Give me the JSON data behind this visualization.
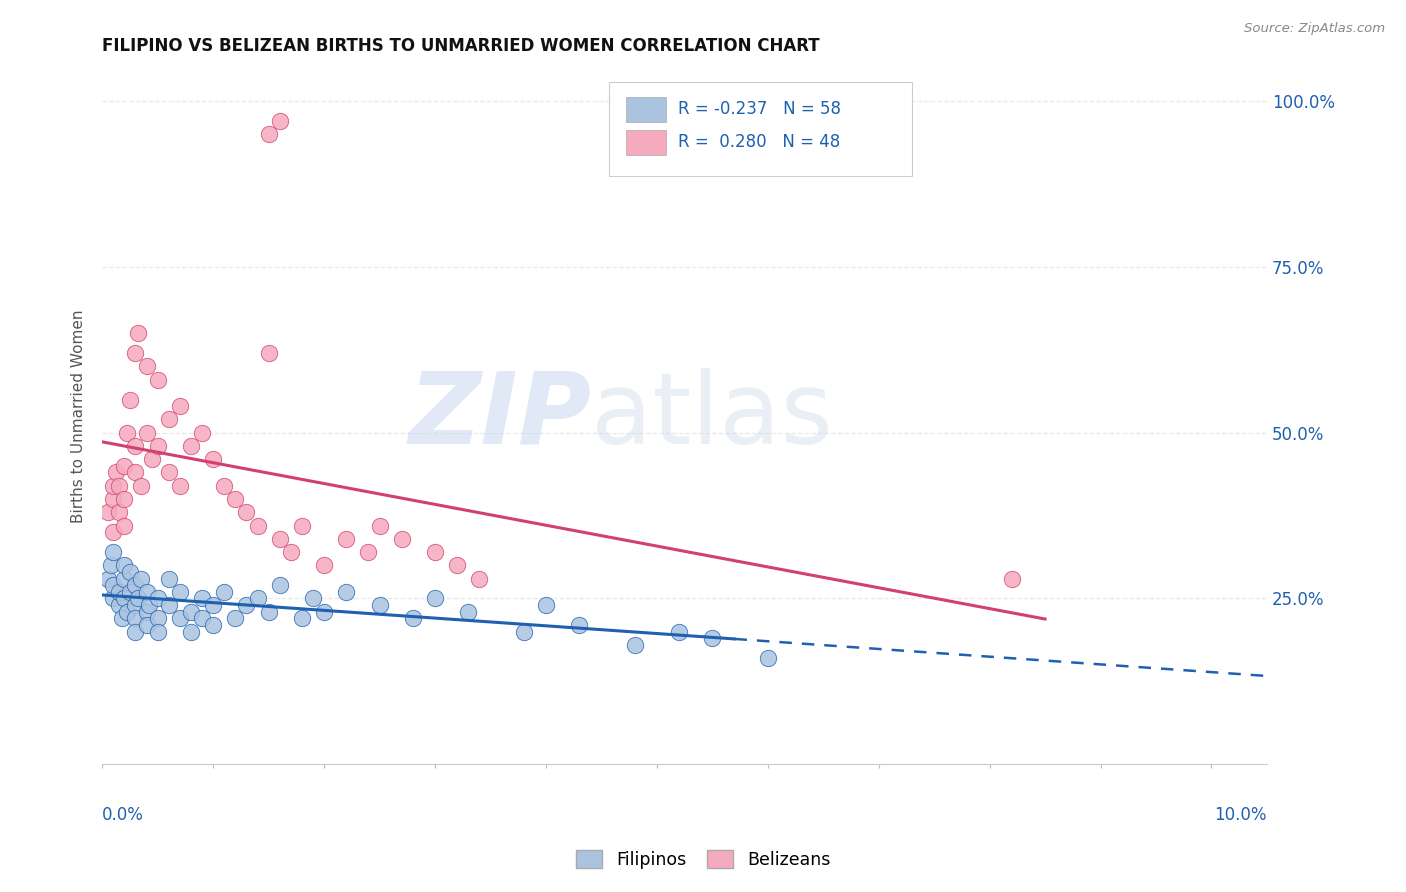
{
  "title": "FILIPINO VS BELIZEAN BIRTHS TO UNMARRIED WOMEN CORRELATION CHART",
  "source": "Source: ZipAtlas.com",
  "ylabel": "Births to Unmarried Women",
  "filipino_R": -0.237,
  "filipino_N": 58,
  "belizean_R": 0.28,
  "belizean_N": 48,
  "filipino_color": "#aac4e0",
  "belizean_color": "#f5aabe",
  "trend_filipino_color": "#2060b0",
  "trend_belizean_color": "#d04070",
  "legend_label_filipino": "Filipinos",
  "legend_label_belizean": "Belizeans",
  "filipinos_x": [
    0.0005,
    0.0008,
    0.001,
    0.001,
    0.001,
    0.0015,
    0.0015,
    0.0018,
    0.002,
    0.002,
    0.002,
    0.0022,
    0.0025,
    0.0025,
    0.003,
    0.003,
    0.003,
    0.003,
    0.0032,
    0.0035,
    0.004,
    0.004,
    0.004,
    0.0042,
    0.005,
    0.005,
    0.005,
    0.006,
    0.006,
    0.007,
    0.007,
    0.008,
    0.008,
    0.009,
    0.009,
    0.01,
    0.01,
    0.011,
    0.012,
    0.013,
    0.014,
    0.015,
    0.016,
    0.018,
    0.019,
    0.02,
    0.022,
    0.025,
    0.028,
    0.03,
    0.033,
    0.038,
    0.04,
    0.043,
    0.048,
    0.052,
    0.055,
    0.06
  ],
  "filipinos_y": [
    0.28,
    0.3,
    0.25,
    0.27,
    0.32,
    0.24,
    0.26,
    0.22,
    0.25,
    0.28,
    0.3,
    0.23,
    0.26,
    0.29,
    0.24,
    0.27,
    0.22,
    0.2,
    0.25,
    0.28,
    0.23,
    0.26,
    0.21,
    0.24,
    0.22,
    0.25,
    0.2,
    0.24,
    0.28,
    0.22,
    0.26,
    0.2,
    0.23,
    0.22,
    0.25,
    0.21,
    0.24,
    0.26,
    0.22,
    0.24,
    0.25,
    0.23,
    0.27,
    0.22,
    0.25,
    0.23,
    0.26,
    0.24,
    0.22,
    0.25,
    0.23,
    0.2,
    0.24,
    0.21,
    0.18,
    0.2,
    0.19,
    0.16
  ],
  "belizeans_x": [
    0.0005,
    0.001,
    0.001,
    0.001,
    0.0012,
    0.0015,
    0.0015,
    0.002,
    0.002,
    0.002,
    0.0022,
    0.0025,
    0.003,
    0.003,
    0.003,
    0.0032,
    0.0035,
    0.004,
    0.004,
    0.0045,
    0.005,
    0.005,
    0.006,
    0.006,
    0.007,
    0.007,
    0.008,
    0.009,
    0.01,
    0.011,
    0.012,
    0.013,
    0.014,
    0.016,
    0.017,
    0.018,
    0.02,
    0.022,
    0.024,
    0.025,
    0.027,
    0.03,
    0.032,
    0.034,
    0.015,
    0.016,
    0.082,
    0.015
  ],
  "belizeans_y": [
    0.38,
    0.35,
    0.4,
    0.42,
    0.44,
    0.38,
    0.42,
    0.36,
    0.4,
    0.45,
    0.5,
    0.55,
    0.48,
    0.44,
    0.62,
    0.65,
    0.42,
    0.6,
    0.5,
    0.46,
    0.58,
    0.48,
    0.44,
    0.52,
    0.54,
    0.42,
    0.48,
    0.5,
    0.46,
    0.42,
    0.4,
    0.38,
    0.36,
    0.34,
    0.32,
    0.36,
    0.3,
    0.34,
    0.32,
    0.36,
    0.34,
    0.32,
    0.3,
    0.28,
    0.95,
    0.97,
    0.28,
    0.62
  ],
  "watermark_zip": "ZIP",
  "watermark_atlas": "atlas",
  "background_color": "#ffffff",
  "grid_color": "#e8e8e8",
  "ytick_vals": [
    0.0,
    0.25,
    0.5,
    0.75,
    1.0
  ],
  "ytick_labels": [
    "",
    "25.0%",
    "50.0%",
    "75.0%",
    "100.0%"
  ],
  "xlim": [
    0.0,
    0.105
  ],
  "ylim": [
    0.0,
    1.05
  ]
}
